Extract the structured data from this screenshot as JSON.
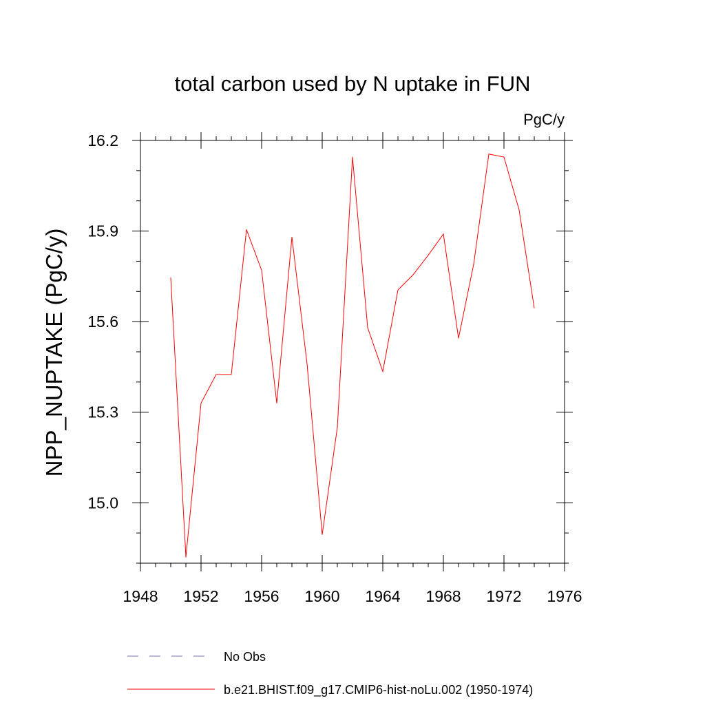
{
  "chart_data": {
    "type": "line",
    "title": "total carbon used by N uptake in FUN",
    "units": "PgC/y",
    "ylabel": "NPP_NUPTAKE  (PgC/y)",
    "xlabel": "",
    "xlim": [
      1948,
      1976
    ],
    "ylim": [
      14.8,
      16.2
    ],
    "x_ticks": [
      1948,
      1952,
      1956,
      1960,
      1964,
      1968,
      1972,
      1976
    ],
    "y_ticks": [
      "15.0",
      "15.3",
      "15.6",
      "15.9",
      "16.2"
    ],
    "grid": false,
    "legend_position": "bottom",
    "series": [
      {
        "name": "No Obs",
        "color": "#7d6fb3",
        "dash": "dashed",
        "x": [],
        "values": []
      },
      {
        "name": "b.e21.BHIST.f09_g17.CMIP6-hist-noLu.002 (1950-1974)",
        "color": "#ff0000",
        "dash": "solid",
        "x": [
          1950,
          1951,
          1952,
          1953,
          1954,
          1955,
          1956,
          1957,
          1958,
          1959,
          1960,
          1961,
          1962,
          1963,
          1964,
          1965,
          1966,
          1967,
          1968,
          1969,
          1970,
          1971,
          1972,
          1973,
          1974
        ],
        "values": [
          15.745,
          14.82,
          15.33,
          15.425,
          15.425,
          15.905,
          15.77,
          15.33,
          15.88,
          15.46,
          14.895,
          15.25,
          16.145,
          15.58,
          15.435,
          15.705,
          15.755,
          15.82,
          15.89,
          15.545,
          15.79,
          16.155,
          16.145,
          15.97,
          15.645
        ]
      }
    ]
  }
}
